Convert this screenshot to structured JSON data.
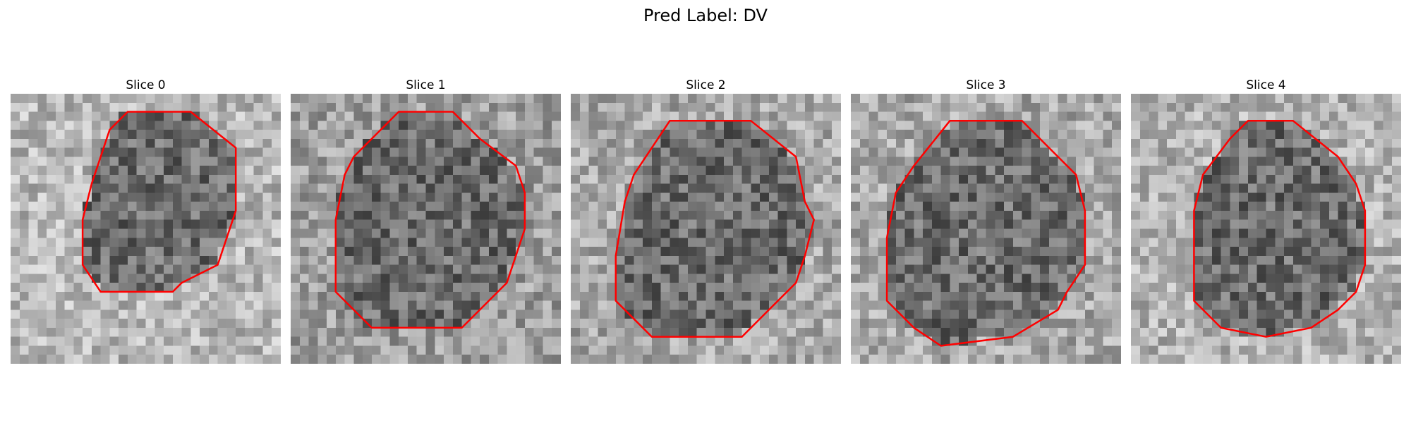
{
  "figure": {
    "title": "Pred Label: DV"
  },
  "panels": [
    {
      "title": "Slice 0"
    },
    {
      "title": "Slice 1"
    },
    {
      "title": "Slice 2"
    },
    {
      "title": "Slice 3"
    },
    {
      "title": "Slice 4"
    }
  ],
  "colors": {
    "contour": "#ff0000",
    "background": "#ffffff"
  }
}
